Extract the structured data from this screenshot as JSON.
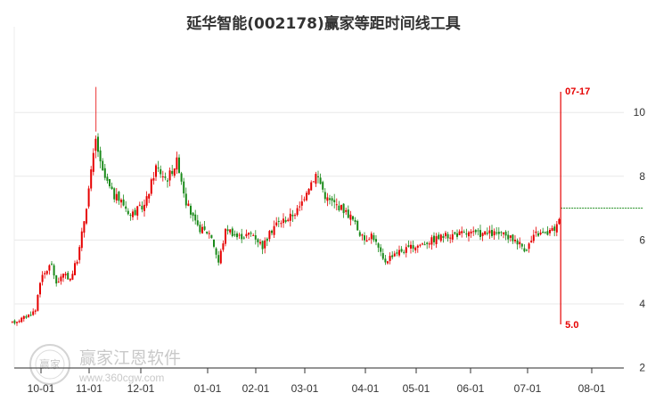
{
  "chart_data": {
    "type": "candlestick",
    "title": "延华智能(002178)赢家等距时间线工具",
    "x_tick_labels": [
      "10-01",
      "11-01",
      "12-01",
      "01-01",
      "02-01",
      "03-01",
      "04-01",
      "05-01",
      "06-01",
      "07-01",
      "08-01"
    ],
    "y_tick_labels": [
      "10",
      "8",
      "6",
      "4",
      "2"
    ],
    "ylim": [
      2,
      11
    ],
    "grid": true,
    "up_color": "#e60000",
    "down_color": "#1a8a1a",
    "price_path": [
      [
        "09-10",
        3.4
      ],
      [
        "09-20",
        3.6
      ],
      [
        "09-27",
        3.8
      ],
      [
        "09-30",
        4.7
      ],
      [
        "10-08",
        5.3
      ],
      [
        "10-10",
        4.6
      ],
      [
        "10-15",
        4.9
      ],
      [
        "10-20",
        4.8
      ],
      [
        "10-25",
        5.5
      ],
      [
        "10-30",
        7.0
      ],
      [
        "11-05",
        9.2
      ],
      [
        "11-08",
        8.2
      ],
      [
        "11-15",
        7.4
      ],
      [
        "11-20",
        7.2
      ],
      [
        "11-25",
        6.8
      ],
      [
        "12-03",
        7.1
      ],
      [
        "12-08",
        8.3
      ],
      [
        "12-13",
        7.9
      ],
      [
        "12-18",
        8.5
      ],
      [
        "12-22",
        7.2
      ],
      [
        "12-27",
        6.4
      ],
      [
        "01-03",
        6.2
      ],
      [
        "01-08",
        5.3
      ],
      [
        "01-13",
        6.4
      ],
      [
        "01-20",
        6.1
      ],
      [
        "01-30",
        6.2
      ],
      [
        "02-05",
        5.8
      ],
      [
        "02-12",
        6.5
      ],
      [
        "02-20",
        6.7
      ],
      [
        "02-26",
        7.0
      ],
      [
        "03-02",
        7.6
      ],
      [
        "03-07",
        8.1
      ],
      [
        "03-12",
        7.3
      ],
      [
        "03-20",
        7.0
      ],
      [
        "03-25",
        6.7
      ],
      [
        "03-31",
        6.0
      ],
      [
        "04-05",
        6.2
      ],
      [
        "04-12",
        5.3
      ],
      [
        "04-18",
        5.6
      ],
      [
        "04-25",
        5.7
      ],
      [
        "05-05",
        5.9
      ],
      [
        "05-15",
        6.1
      ],
      [
        "05-25",
        6.2
      ],
      [
        "06-05",
        6.2
      ],
      [
        "06-15",
        6.2
      ],
      [
        "06-25",
        6.0
      ],
      [
        "06-30",
        5.7
      ],
      [
        "07-05",
        6.2
      ],
      [
        "07-10",
        6.2
      ],
      [
        "07-15",
        6.4
      ],
      [
        "07-17",
        7.0
      ]
    ],
    "annotations": {
      "vertical_line_date": "07-17",
      "vertical_line_label": "07-17",
      "bottom_value_label": "5.0",
      "reference_level": 7.0
    }
  },
  "watermark": {
    "logo_text": "赢家",
    "text": "赢家江恩软件",
    "url": "www.360cgw.com"
  }
}
